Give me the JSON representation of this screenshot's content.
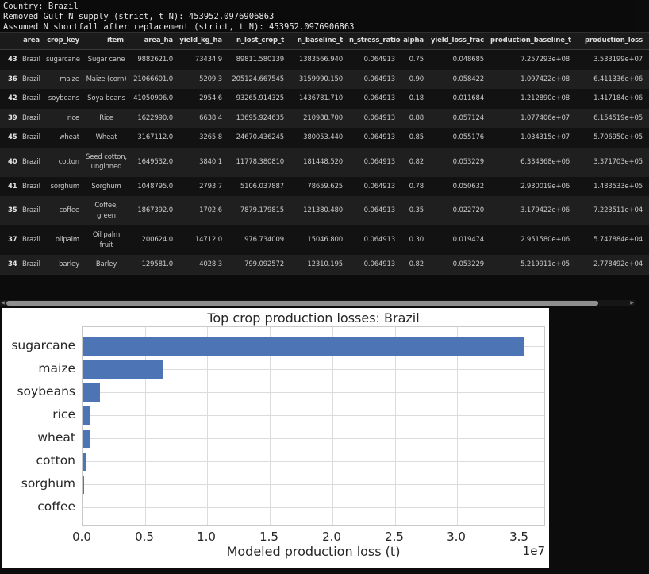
{
  "console": {
    "lines": [
      "Country: Brazil",
      "Removed Gulf N supply (strict, t N): 453952.0976906863",
      "Assumed N shortfall after replacement (strict, t N): 453952.0976906863"
    ]
  },
  "table": {
    "columns": [
      "area",
      "crop_key",
      "item",
      "area_ha",
      "yield_kg_ha",
      "n_lost_crop_t",
      "n_baseline_t",
      "n_stress_ratio",
      "alpha",
      "yield_loss_frac",
      "production_baseline_t",
      "production_loss"
    ],
    "rows": [
      {
        "index": "43",
        "cells": [
          "Brazil",
          "sugarcane",
          "Sugar cane",
          "9882621.0",
          "73434.9",
          "89811.580139",
          "1383566.940",
          "0.064913",
          "0.75",
          "0.048685",
          "7.257293e+08",
          "3.533199e+07"
        ]
      },
      {
        "index": "36",
        "cells": [
          "Brazil",
          "maize",
          "Maize (corn)",
          "21066601.0",
          "5209.3",
          "205124.667545",
          "3159990.150",
          "0.064913",
          "0.90",
          "0.058422",
          "1.097422e+08",
          "6.411336e+06"
        ]
      },
      {
        "index": "42",
        "cells": [
          "Brazil",
          "soybeans",
          "Soya beans",
          "41050906.0",
          "2954.6",
          "93265.914325",
          "1436781.710",
          "0.064913",
          "0.18",
          "0.011684",
          "1.212890e+08",
          "1.417184e+06"
        ]
      },
      {
        "index": "39",
        "cells": [
          "Brazil",
          "rice",
          "Rice",
          "1622990.0",
          "6638.4",
          "13695.924635",
          "210988.700",
          "0.064913",
          "0.88",
          "0.057124",
          "1.077406e+07",
          "6.154519e+05"
        ]
      },
      {
        "index": "45",
        "cells": [
          "Brazil",
          "wheat",
          "Wheat",
          "3167112.0",
          "3265.8",
          "24670.436245",
          "380053.440",
          "0.064913",
          "0.85",
          "0.055176",
          "1.034315e+07",
          "5.706950e+05"
        ]
      },
      {
        "index": "40",
        "cells": [
          "Brazil",
          "cotton",
          "Seed cotton, unginned",
          "1649532.0",
          "3840.1",
          "11778.380810",
          "181448.520",
          "0.064913",
          "0.82",
          "0.053229",
          "6.334368e+06",
          "3.371703e+05"
        ]
      },
      {
        "index": "41",
        "cells": [
          "Brazil",
          "sorghum",
          "Sorghum",
          "1048795.0",
          "2793.7",
          "5106.037887",
          "78659.625",
          "0.064913",
          "0.78",
          "0.050632",
          "2.930019e+06",
          "1.483533e+05"
        ]
      },
      {
        "index": "35",
        "cells": [
          "Brazil",
          "coffee",
          "Coffee, green",
          "1867392.0",
          "1702.6",
          "7879.179815",
          "121380.480",
          "0.064913",
          "0.35",
          "0.022720",
          "3.179422e+06",
          "7.223511e+04"
        ]
      },
      {
        "index": "37",
        "cells": [
          "Brazil",
          "oilpalm",
          "Oil palm fruit",
          "200624.0",
          "14712.0",
          "976.734009",
          "15046.800",
          "0.064913",
          "0.30",
          "0.019474",
          "2.951580e+06",
          "5.747884e+04"
        ]
      },
      {
        "index": "34",
        "cells": [
          "Brazil",
          "barley",
          "Barley",
          "129581.0",
          "4028.3",
          "799.092572",
          "12310.195",
          "0.064913",
          "0.82",
          "0.053229",
          "5.219911e+05",
          "2.778492e+04"
        ]
      }
    ]
  },
  "chart_data": {
    "type": "bar",
    "orientation": "horizontal",
    "title": "Top crop production losses: Brazil",
    "xlabel": "Modeled production loss (t)",
    "offset_text": "1e7",
    "categories": [
      "sugarcane",
      "maize",
      "soybeans",
      "rice",
      "wheat",
      "cotton",
      "sorghum",
      "coffee"
    ],
    "values": [
      35331990,
      6411336,
      1417184,
      615452,
      570695,
      337170,
      148353,
      72235
    ],
    "xlim": [
      0,
      37100000
    ],
    "xtick_values": [
      0,
      5000000,
      10000000,
      15000000,
      20000000,
      25000000,
      30000000,
      35000000
    ],
    "xtick_labels": [
      "0.0",
      "0.5",
      "1.0",
      "1.5",
      "2.0",
      "2.5",
      "3.0",
      "3.5"
    ],
    "grid": true,
    "legend": false,
    "bar_color": "#4d74b5",
    "plot_bg": "#ffffff",
    "grid_color": "#dcdcdc"
  }
}
